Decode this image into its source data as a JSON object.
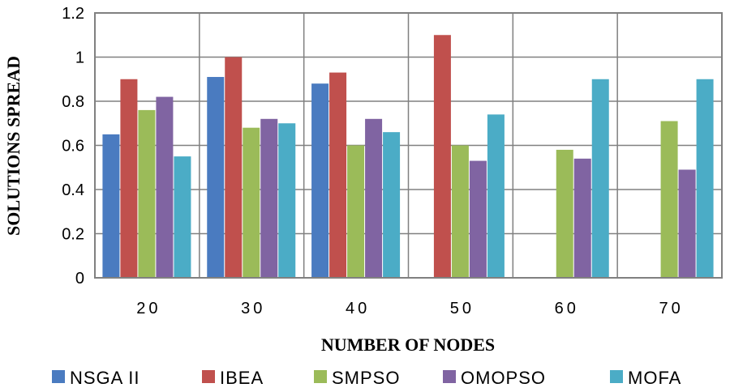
{
  "chart_data": {
    "type": "bar",
    "title": "",
    "xlabel": "NUMBER OF NODES",
    "ylabel": "SOLUTIONS SPREAD",
    "categories": [
      "20",
      "30",
      "40",
      "50",
      "60",
      "70"
    ],
    "ylim": [
      0,
      1.2
    ],
    "yticks": [
      "0",
      "0.2",
      "0.4",
      "0.6",
      "0.8",
      "1",
      "1.2"
    ],
    "grid": true,
    "legend_position": "bottom",
    "series": [
      {
        "name": "NSGA II",
        "color": "#4a7bc0",
        "values": [
          0.65,
          0.91,
          0.88,
          null,
          null,
          null
        ]
      },
      {
        "name": "IBEA",
        "color": "#c0504d",
        "values": [
          0.9,
          1.0,
          0.93,
          1.1,
          null,
          null
        ]
      },
      {
        "name": "SMPSO",
        "color": "#9bbb59",
        "values": [
          0.76,
          0.68,
          0.6,
          0.6,
          0.58,
          0.71
        ]
      },
      {
        "name": "OMOPSO",
        "color": "#8064a2",
        "values": [
          0.82,
          0.72,
          0.72,
          0.53,
          0.54,
          0.49
        ]
      },
      {
        "name": "MOFA",
        "color": "#4bacc6",
        "values": [
          0.55,
          0.7,
          0.66,
          0.74,
          0.9,
          0.9
        ]
      }
    ]
  }
}
